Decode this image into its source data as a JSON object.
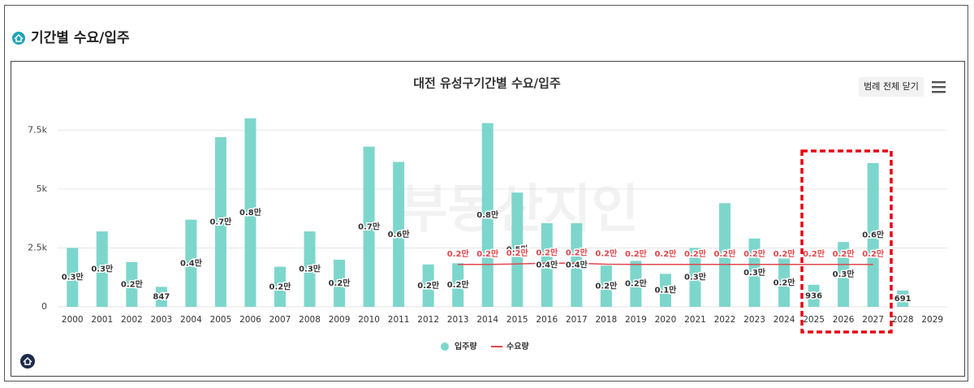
{
  "header": {
    "title": "기간별 수요/입주"
  },
  "legend_toggle": "범례 전체 닫기",
  "watermark": "부동산지인",
  "chart_data": {
    "type": "bar",
    "title": "대전 유성구기간별 수요/입주",
    "categories": [
      "2000",
      "2001",
      "2002",
      "2003",
      "2004",
      "2005",
      "2006",
      "2007",
      "2008",
      "2009",
      "2010",
      "2011",
      "2012",
      "2013",
      "2014",
      "2015",
      "2016",
      "2017",
      "2018",
      "2019",
      "2020",
      "2021",
      "2022",
      "2023",
      "2024",
      "2025",
      "2026",
      "2027",
      "2028",
      "2029"
    ],
    "series": [
      {
        "name": "입주량",
        "type": "bar",
        "color": "#7dd6cc",
        "values": [
          2500,
          3200,
          1900,
          847,
          3700,
          7200,
          8000,
          1700,
          3200,
          2000,
          6800,
          6150,
          1800,
          1850,
          7800,
          4850,
          3550,
          3550,
          1750,
          1950,
          1400,
          2500,
          4400,
          2900,
          2050,
          936,
          2750,
          6100,
          691,
          null
        ],
        "value_labels": [
          "0.3만",
          "0.3만",
          "0.2만",
          "847",
          "0.4만",
          "0.7만",
          "0.8만",
          "0.2만",
          "0.3만",
          "0.2만",
          "0.7만",
          "0.6만",
          "0.2만",
          "0.2만",
          "0.8만",
          "0.5만",
          "0.4만",
          "0.4만",
          "0.2만",
          "0.2만",
          "0.1만",
          "0.3만",
          null,
          "0.3만",
          "0.2만",
          "936",
          "0.3만",
          "0.6만",
          "691",
          null
        ]
      },
      {
        "name": "수요량",
        "type": "line",
        "color": "#e0474c",
        "values": [
          null,
          null,
          null,
          null,
          null,
          null,
          null,
          null,
          null,
          null,
          null,
          null,
          null,
          1800,
          1800,
          1820,
          1850,
          1850,
          1810,
          1800,
          1800,
          1800,
          1800,
          1800,
          1800,
          1800,
          1800,
          1800,
          null,
          null
        ],
        "value_labels": [
          null,
          null,
          null,
          null,
          null,
          null,
          null,
          null,
          null,
          null,
          null,
          null,
          null,
          "0.2만",
          "0.2만",
          "0.2만",
          "0.2만",
          "0.2만",
          "0.2만",
          "0.2만",
          "0.2만",
          "0.2만",
          "0.2만",
          "0.2만",
          "0.2만",
          "0.2만",
          "0.2만",
          "0.2만",
          null,
          null
        ]
      }
    ],
    "ylim": [
      0,
      8200
    ],
    "yticks": [
      0,
      {
        "value": 2500,
        "label": "2.5k"
      },
      {
        "value": 5000,
        "label": "5k"
      },
      {
        "value": 7500,
        "label": "7.5k"
      }
    ],
    "grid": true,
    "legend": "bottom"
  }
}
